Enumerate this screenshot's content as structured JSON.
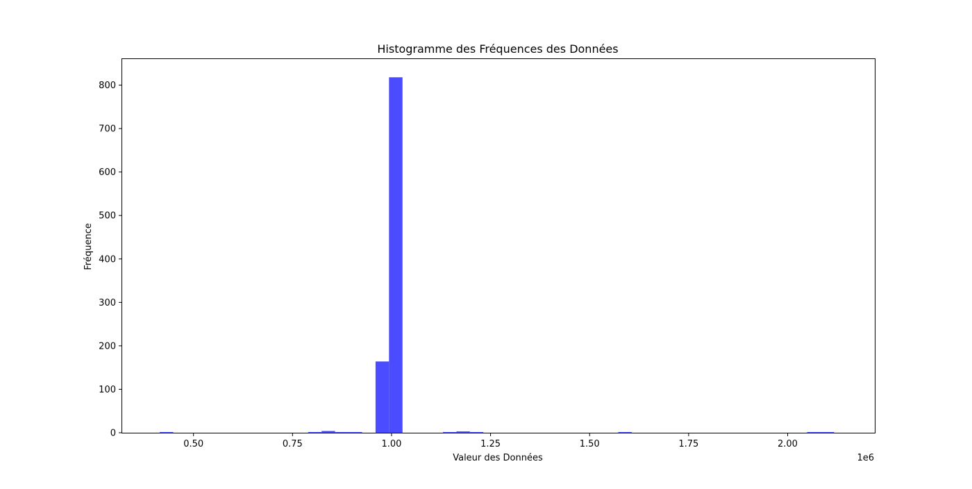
{
  "chart_data": {
    "type": "bar",
    "title": "Histogramme des Fréquences des Données",
    "xlabel": "Valeur des Données",
    "ylabel": "Fréquence",
    "x_offset_text": "1e6",
    "xlim": [
      0.32,
      2.22
    ],
    "ylim": [
      0,
      860
    ],
    "x_ticks": [
      0.5,
      0.75,
      1.0,
      1.25,
      1.5,
      1.75,
      2.0
    ],
    "x_tick_labels": [
      "0.50",
      "0.75",
      "1.00",
      "1.25",
      "1.50",
      "1.75",
      "2.00"
    ],
    "y_ticks": [
      0,
      100,
      200,
      300,
      400,
      500,
      600,
      700,
      800
    ],
    "y_tick_labels": [
      "0",
      "100",
      "200",
      "300",
      "400",
      "500",
      "600",
      "700",
      "800"
    ],
    "bar_color": "#4B4BFF",
    "grid": false,
    "legend": false,
    "bins": [
      {
        "x0": 0.4148,
        "x1": 0.4489,
        "count": 1
      },
      {
        "x0": 0.7893,
        "x1": 0.8234,
        "count": 1
      },
      {
        "x0": 0.8234,
        "x1": 0.8574,
        "count": 4
      },
      {
        "x0": 0.8574,
        "x1": 0.8915,
        "count": 1
      },
      {
        "x0": 0.8915,
        "x1": 0.9255,
        "count": 1
      },
      {
        "x0": 0.9596,
        "x1": 0.9936,
        "count": 164
      },
      {
        "x0": 0.9936,
        "x1": 1.0277,
        "count": 818
      },
      {
        "x0": 1.1298,
        "x1": 1.1638,
        "count": 1
      },
      {
        "x0": 1.1638,
        "x1": 1.1979,
        "count": 3
      },
      {
        "x0": 1.1979,
        "x1": 1.2319,
        "count": 1
      },
      {
        "x0": 1.5723,
        "x1": 1.6064,
        "count": 1
      },
      {
        "x0": 2.0489,
        "x1": 2.083,
        "count": 1
      },
      {
        "x0": 2.083,
        "x1": 2.117,
        "count": 1
      }
    ]
  }
}
